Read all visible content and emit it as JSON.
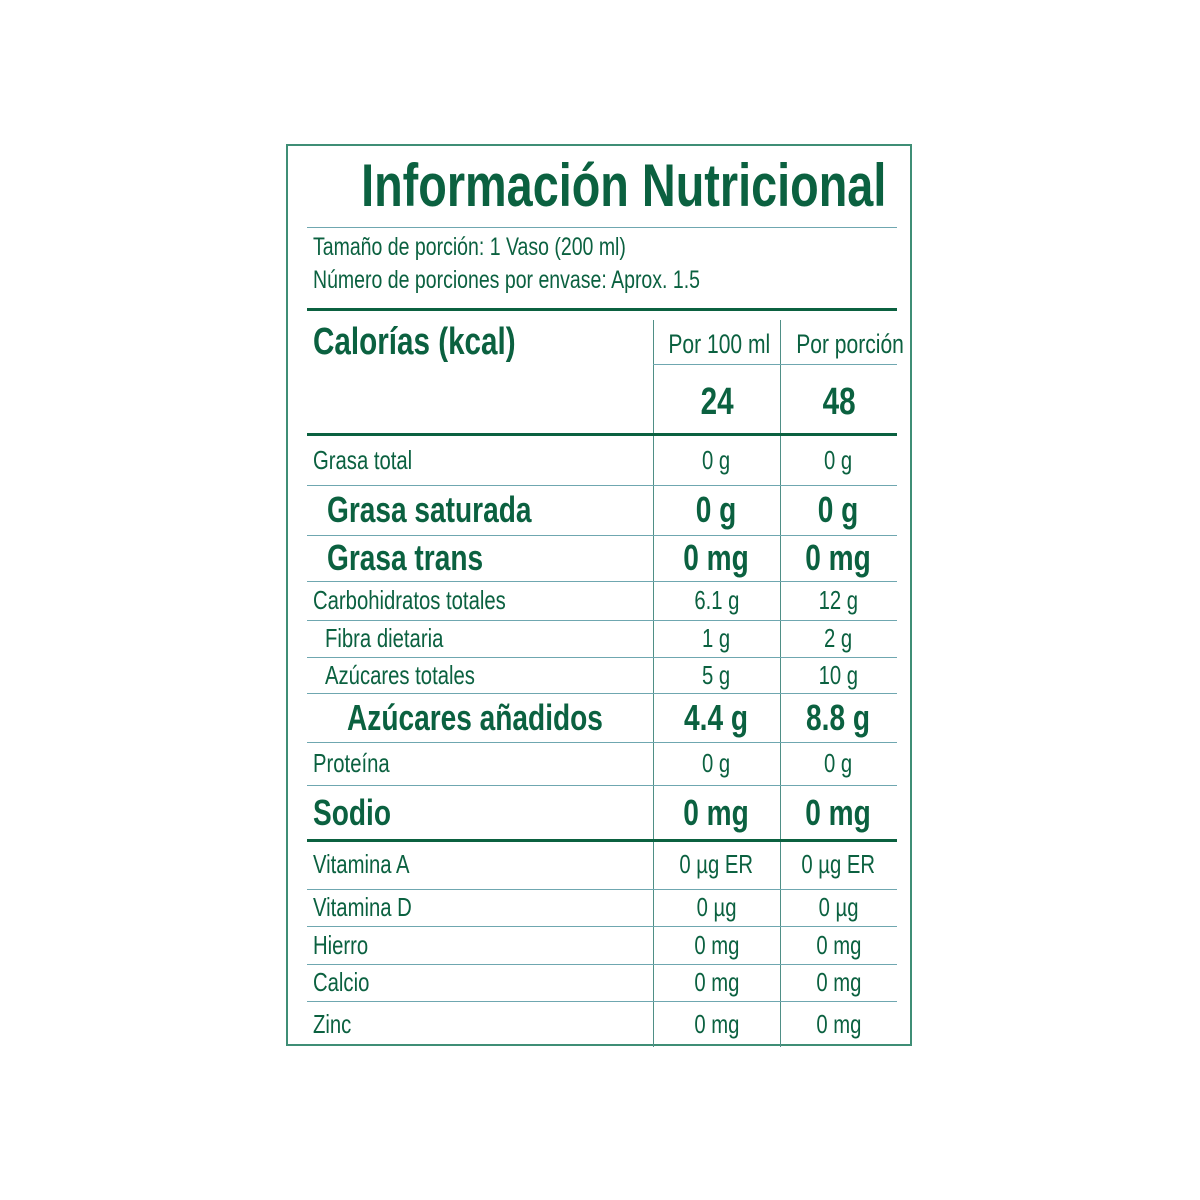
{
  "title": "Información Nutricional",
  "serving_size": "Tamaño de porción: 1 Vaso (200 ml)",
  "servings_per_container": "Número de porciones por envase: Aprox. 1.5",
  "calories": {
    "label": "Calorías (kcal)",
    "col1_header": "Por 100 ml",
    "col2_header": "Por porción",
    "per_100": "24",
    "per_portion": "48"
  },
  "rows": [
    {
      "label": "Grasa total",
      "per_100": "0 g",
      "per_portion": "0 g",
      "style": "normal"
    },
    {
      "label": "Grasa saturada",
      "per_100": "0 g",
      "per_portion": "0 g",
      "style": "bold-indent"
    },
    {
      "label": "Grasa trans",
      "per_100": "0 mg",
      "per_portion": "0 mg",
      "style": "bold-indent"
    },
    {
      "label": "Carbohidratos totales",
      "per_100": "6.1 g",
      "per_portion": "12 g",
      "style": "normal"
    },
    {
      "label": "Fibra dietaria",
      "per_100": "1 g",
      "per_portion": "2 g",
      "style": "indent"
    },
    {
      "label": "Azúcares totales",
      "per_100": "5 g",
      "per_portion": "10 g",
      "style": "indent"
    },
    {
      "label": "Azúcares añadidos",
      "per_100": "4.4 g",
      "per_portion": "8.8 g",
      "style": "bold-indent2"
    },
    {
      "label": "Proteína",
      "per_100": "0 g",
      "per_portion": "0 g",
      "style": "normal"
    },
    {
      "label": "Sodio",
      "per_100": "0 mg",
      "per_portion": "0 mg",
      "style": "bold"
    },
    {
      "label": "Vitamina A",
      "per_100": "0 µg ER",
      "per_portion": "0 µg ER",
      "style": "normal"
    },
    {
      "label": "Vitamina D",
      "per_100": "0 µg",
      "per_portion": "0 µg",
      "style": "normal"
    },
    {
      "label": "Hierro",
      "per_100": "0 mg",
      "per_portion": "0 mg",
      "style": "normal"
    },
    {
      "label": "Calcio",
      "per_100": "0 mg",
      "per_portion": "0 mg",
      "style": "normal"
    },
    {
      "label": "Zinc",
      "per_100": "0 mg",
      "per_portion": "0 mg",
      "style": "normal"
    }
  ],
  "colors": {
    "text": "#0b6140",
    "border": "#3f8e76",
    "rule": "#6fa7b0"
  }
}
